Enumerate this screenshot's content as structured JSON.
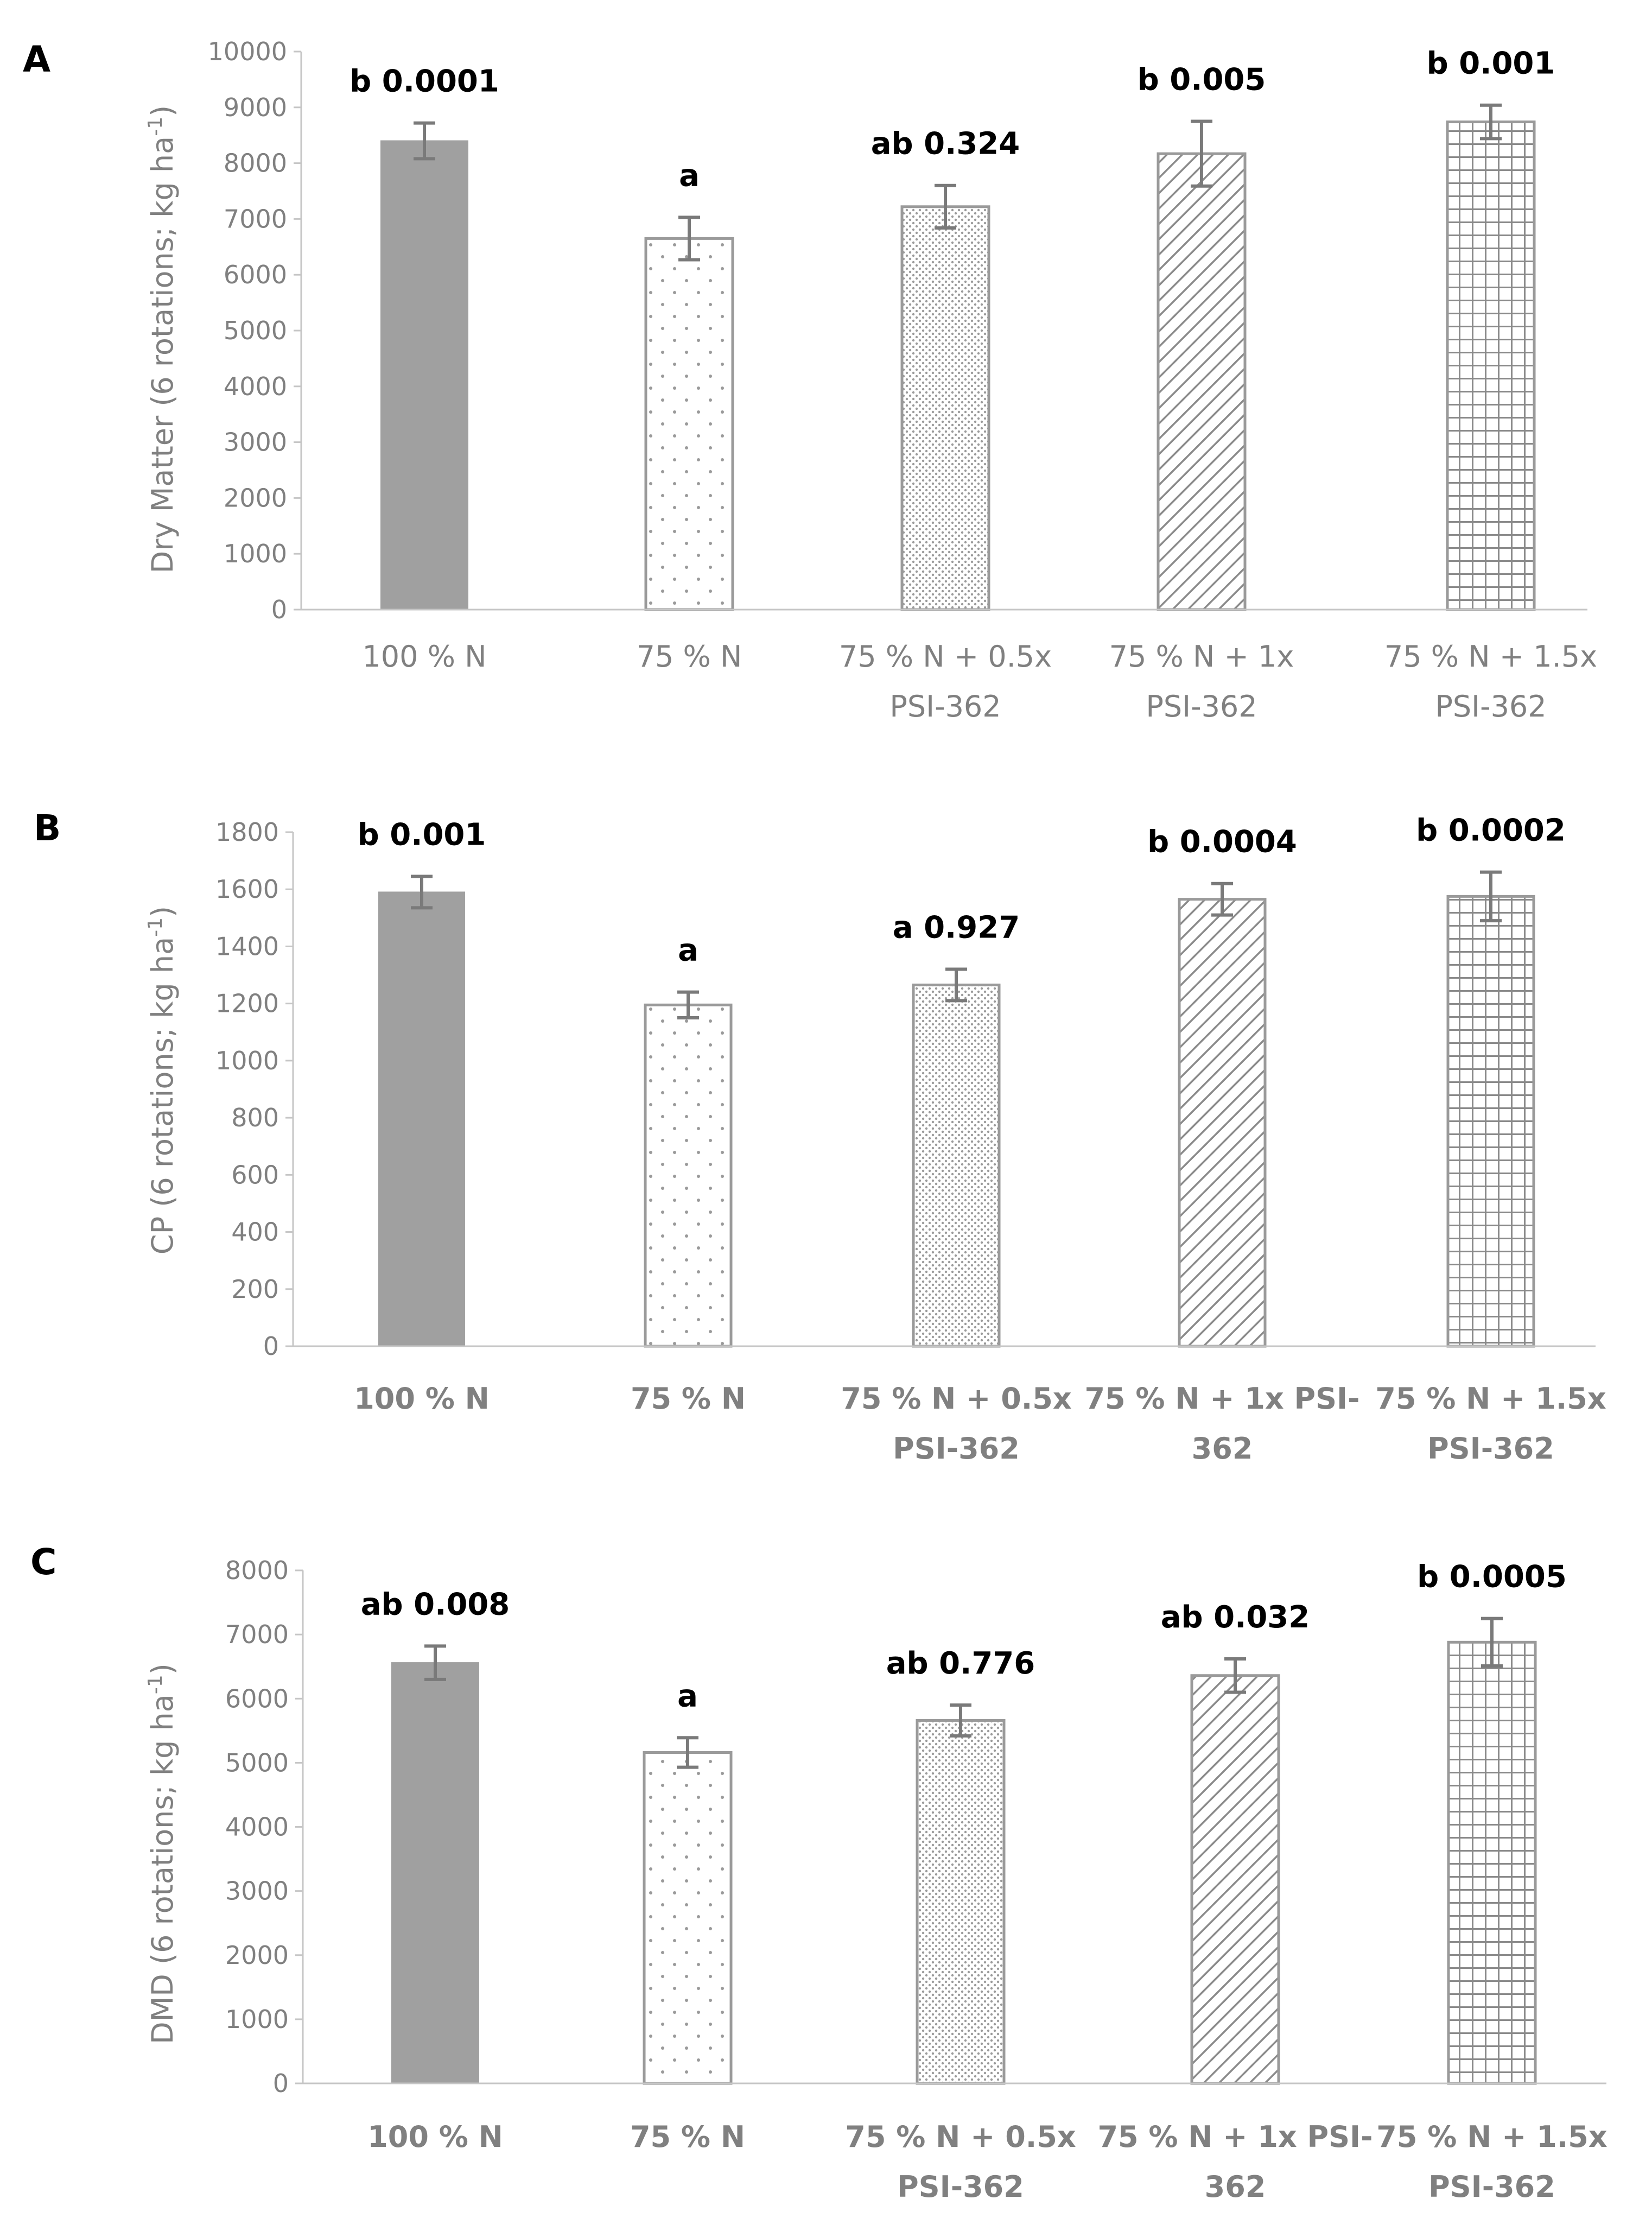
{
  "chart_data": [
    {
      "type": "bar",
      "panel_label": "A",
      "title": "",
      "xlabel": "",
      "ylabel_main": "Dry Matter (6 rotations;  kg ha",
      "ylabel_sup": "-1",
      "ylabel_end": ")",
      "ylim": [
        0,
        10000
      ],
      "yticks": [
        0,
        1000,
        2000,
        3000,
        4000,
        5000,
        6000,
        7000,
        8000,
        9000,
        10000
      ],
      "categories": [
        [
          "100 % N"
        ],
        [
          "75 % N"
        ],
        [
          "75 % N + 0.5x",
          "PSI-362"
        ],
        [
          "75 % N + 1x",
          "PSI-362"
        ],
        [
          "75 % N + 1.5x",
          "PSI-362"
        ]
      ],
      "values": [
        8400,
        6650,
        7220,
        8170,
        8740
      ],
      "errors": [
        320,
        380,
        380,
        580,
        300
      ],
      "annotations": [
        "b 0.0001",
        "a",
        "ab 0.324",
        "b 0.005",
        "b 0.001"
      ],
      "patterns": [
        "solid",
        "dots",
        "fine-dots",
        "diagonal",
        "grid"
      ],
      "tick_labels_bold": false,
      "grid": false
    },
    {
      "type": "bar",
      "panel_label": "B",
      "title": "",
      "xlabel": "",
      "ylabel_main": "CP (6 rotations;  kg ha",
      "ylabel_sup": "-1",
      "ylabel_end": ")",
      "ylim": [
        0,
        1800
      ],
      "yticks": [
        0,
        200,
        400,
        600,
        800,
        1000,
        1200,
        1400,
        1600,
        1800
      ],
      "categories": [
        [
          "100 % N"
        ],
        [
          "75 % N"
        ],
        [
          "75 % N + 0.5x",
          "PSI-362"
        ],
        [
          "75 % N + 1x PSI-",
          "362"
        ],
        [
          "75 % N + 1.5x",
          "PSI-362"
        ]
      ],
      "values": [
        1590,
        1195,
        1265,
        1565,
        1575
      ],
      "errors": [
        55,
        45,
        55,
        55,
        85
      ],
      "annotations": [
        "b 0.001",
        "a",
        "a 0.927",
        "b 0.0004",
        "b 0.0002"
      ],
      "patterns": [
        "solid",
        "dots",
        "fine-dots",
        "diagonal",
        "grid"
      ],
      "tick_labels_bold": true,
      "grid": false
    },
    {
      "type": "bar",
      "panel_label": "C",
      "title": "",
      "xlabel": "",
      "ylabel_main": "DMD (6 rotations;  kg ha",
      "ylabel_sup": "-1",
      "ylabel_end": ")",
      "ylim": [
        0,
        8000
      ],
      "yticks": [
        0,
        1000,
        2000,
        3000,
        4000,
        5000,
        6000,
        7000,
        8000
      ],
      "categories": [
        [
          "100 % N"
        ],
        [
          "75 % N"
        ],
        [
          "75 % N + 0.5x",
          "PSI-362"
        ],
        [
          "75 % N + 1x PSI-",
          "362"
        ],
        [
          "75 % N + 1.5x",
          "PSI-362"
        ]
      ],
      "values": [
        6560,
        5160,
        5660,
        6360,
        6880
      ],
      "errors": [
        260,
        230,
        240,
        260,
        370
      ],
      "annotations": [
        "ab 0.008",
        "a",
        "ab 0.776",
        "ab 0.032",
        "b 0.0005"
      ],
      "patterns": [
        "solid",
        "dots",
        "fine-dots",
        "diagonal",
        "grid"
      ],
      "tick_labels_bold": true,
      "grid": false
    }
  ],
  "colors": {
    "bar_solid": "#a0a0a0",
    "bar_outline": "#9a9a9a",
    "error_bar": "#7a7a7a",
    "axis": "#c6c6c6",
    "tick_text": "#808080",
    "annotation": "#000000"
  }
}
